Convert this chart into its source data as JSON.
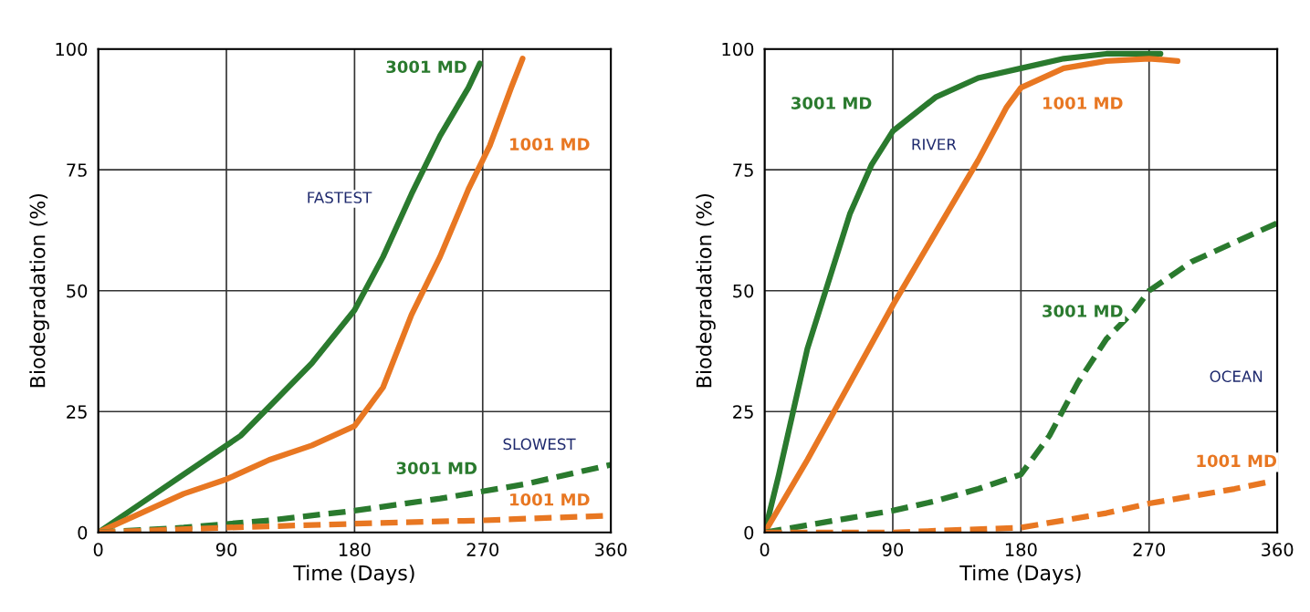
{
  "chart_data": [
    {
      "type": "line",
      "xlabel": "Time (Days)",
      "ylabel": "Biodegradation (%)",
      "xlim": [
        0,
        360
      ],
      "xticks": [
        0,
        90,
        180,
        270,
        360
      ],
      "ylim": [
        0,
        100
      ],
      "yticks": [
        0,
        25,
        50,
        75,
        100
      ],
      "grid": true,
      "legend": false,
      "series": [
        {
          "name": "3001 MD",
          "color": "#2a7a2e",
          "line_style": "solid",
          "x": [
            0,
            30,
            60,
            90,
            100,
            120,
            150,
            180,
            200,
            220,
            240,
            260,
            268
          ],
          "values": [
            0,
            6,
            12,
            18,
            20,
            26,
            35,
            46,
            57,
            70,
            82,
            92,
            97
          ]
        },
        {
          "name": "1001 MD",
          "color": "#e87722",
          "line_style": "solid",
          "x": [
            0,
            30,
            60,
            90,
            120,
            150,
            180,
            200,
            220,
            240,
            260,
            275,
            290,
            298
          ],
          "values": [
            0,
            4,
            8,
            11,
            15,
            18,
            22,
            30,
            45,
            57,
            71,
            80,
            92,
            98
          ]
        },
        {
          "name": "3001 MD",
          "color": "#2a7a2e",
          "line_style": "dashed",
          "x": [
            0,
            60,
            120,
            180,
            240,
            300,
            360
          ],
          "values": [
            0,
            1,
            2.5,
            4.5,
            7,
            10,
            14
          ]
        },
        {
          "name": "1001 MD",
          "color": "#e87722",
          "line_style": "dashed",
          "x": [
            0,
            90,
            180,
            270,
            360
          ],
          "values": [
            0,
            1,
            1.8,
            2.5,
            3.5
          ]
        }
      ],
      "annotations": [
        "FASTEST",
        "SLOWEST"
      ]
    },
    {
      "type": "line",
      "xlabel": "Time (Days)",
      "ylabel": "Biodegradation (%)",
      "xlim": [
        0,
        360
      ],
      "xticks": [
        0,
        90,
        180,
        270,
        360
      ],
      "ylim": [
        0,
        100
      ],
      "yticks": [
        0,
        25,
        50,
        75,
        100
      ],
      "grid": true,
      "legend": false,
      "series": [
        {
          "name": "3001 MD",
          "color": "#2a7a2e",
          "line_style": "solid",
          "x": [
            0,
            10,
            20,
            30,
            45,
            60,
            75,
            90,
            120,
            150,
            180,
            210,
            240,
            270,
            278
          ],
          "values": [
            0,
            12,
            25,
            38,
            52,
            66,
            76,
            83,
            90,
            94,
            96,
            98,
            99,
            99,
            99
          ]
        },
        {
          "name": "1001 MD",
          "color": "#e87722",
          "line_style": "solid",
          "x": [
            0,
            30,
            60,
            90,
            120,
            150,
            170,
            180,
            210,
            240,
            270,
            290
          ],
          "values": [
            0,
            15,
            31,
            47,
            62,
            77,
            88,
            92,
            96,
            97.5,
            98,
            97.5
          ]
        },
        {
          "name": "3001 MD",
          "color": "#2a7a2e",
          "line_style": "dashed",
          "x": [
            0,
            30,
            60,
            90,
            120,
            150,
            180,
            200,
            220,
            240,
            260,
            270,
            300,
            330,
            360
          ],
          "values": [
            0,
            1.5,
            3,
            4.5,
            6.5,
            9,
            12,
            20,
            31,
            40,
            46,
            50,
            56,
            60,
            64
          ]
        },
        {
          "name": "1001 MD",
          "color": "#e87722",
          "line_style": "dashed",
          "x": [
            0,
            90,
            180,
            210,
            240,
            270,
            300,
            330,
            355
          ],
          "values": [
            0,
            0,
            1,
            2.5,
            4,
            6,
            7.5,
            9,
            10.5
          ]
        }
      ],
      "annotations": [
        "RIVER",
        "OCEAN"
      ]
    }
  ]
}
